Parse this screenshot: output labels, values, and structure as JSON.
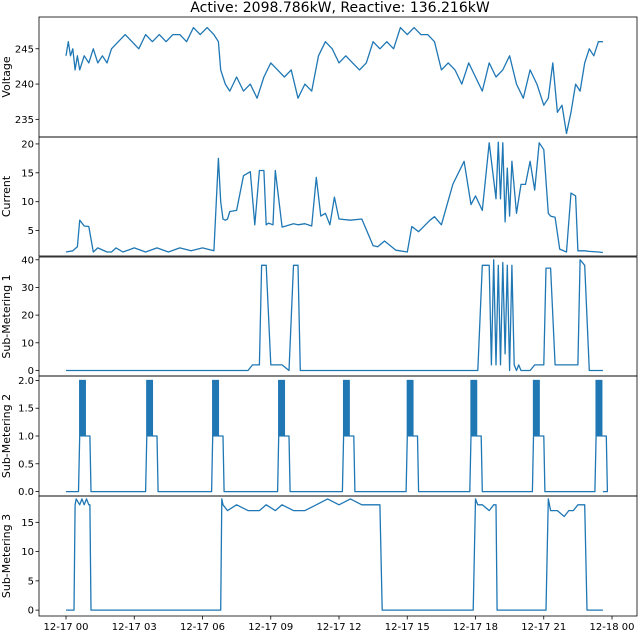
{
  "title": "Active: 2098.786kW, Reactive: 136.216kW",
  "colors": {
    "line": "#1f77b4",
    "axis": "#000000",
    "background": "#ffffff"
  },
  "chart_data": [
    {
      "type": "line",
      "ylabel": "Voltage",
      "ylim": [
        232.5,
        249.5
      ],
      "yticks": [
        235,
        240,
        245
      ],
      "ytick_labels": [
        "235",
        "240",
        "245"
      ],
      "x_hours": [
        0,
        0.1,
        0.2,
        0.3,
        0.4,
        0.5,
        0.6,
        0.8,
        1.0,
        1.2,
        1.4,
        1.6,
        1.8,
        2.0,
        2.3,
        2.6,
        2.9,
        3.2,
        3.5,
        3.8,
        4.1,
        4.4,
        4.7,
        5.0,
        5.3,
        5.6,
        5.9,
        6.2,
        6.5,
        6.7,
        6.8,
        6.9,
        7.0,
        7.2,
        7.5,
        7.8,
        8.1,
        8.4,
        8.7,
        9.0,
        9.3,
        9.6,
        9.9,
        10.2,
        10.5,
        10.8,
        11.1,
        11.4,
        11.7,
        12.0,
        12.3,
        12.6,
        12.9,
        13.2,
        13.5,
        13.8,
        14.1,
        14.4,
        14.7,
        15.0,
        15.3,
        15.6,
        15.9,
        16.2,
        16.5,
        16.8,
        17.1,
        17.4,
        17.7,
        18.0,
        18.3,
        18.6,
        18.9,
        19.2,
        19.5,
        19.8,
        20.1,
        20.4,
        20.7,
        21.0,
        21.2,
        21.4,
        21.6,
        21.8,
        22.0,
        22.2,
        22.4,
        22.6,
        22.8,
        23.0,
        23.2,
        23.4,
        23.6
      ],
      "values": [
        244,
        246,
        244,
        245,
        242,
        244,
        242,
        244,
        243,
        245,
        243,
        244,
        243,
        245,
        246,
        247,
        246,
        245,
        247,
        246,
        247,
        246,
        247,
        247,
        246,
        248,
        247,
        248,
        247,
        246,
        242,
        241,
        240,
        239,
        241,
        239,
        240,
        238,
        241,
        243,
        242,
        241,
        242,
        238,
        240,
        239,
        244,
        246,
        245,
        243,
        244,
        243,
        242,
        243,
        246,
        245,
        246,
        245,
        248,
        247,
        248,
        247,
        247,
        246,
        242,
        243,
        242,
        240,
        243,
        241,
        239,
        243,
        241,
        242,
        244,
        240,
        238,
        242,
        240,
        237,
        238,
        243,
        236,
        237,
        233,
        236,
        240,
        239,
        243,
        245,
        244,
        246,
        246
      ]
    },
    {
      "type": "line",
      "ylabel": "Current",
      "ylim": [
        0.6,
        21.2
      ],
      "yticks": [
        5,
        10,
        15,
        20
      ],
      "ytick_labels": [
        "5",
        "10",
        "15",
        "20"
      ],
      "x_hours": [
        0,
        0.3,
        0.5,
        0.6,
        0.8,
        1.0,
        1.2,
        1.4,
        1.8,
        2.0,
        2.2,
        2.5,
        3.0,
        3.5,
        4.0,
        4.5,
        5.0,
        5.5,
        6.0,
        6.5,
        6.7,
        6.8,
        6.9,
        7.0,
        7.1,
        7.2,
        7.5,
        7.8,
        8.1,
        8.3,
        8.5,
        8.7,
        8.8,
        8.9,
        9.1,
        9.2,
        9.5,
        10.0,
        10.2,
        10.5,
        10.8,
        11.0,
        11.2,
        11.4,
        11.6,
        11.8,
        12.0,
        12.5,
        13.0,
        13.5,
        13.7,
        14.0,
        14.5,
        15.0,
        15.2,
        15.5,
        16.0,
        16.2,
        16.5,
        17.0,
        17.5,
        17.8,
        18.0,
        18.3,
        18.6,
        18.9,
        19.0,
        19.1,
        19.2,
        19.3,
        19.4,
        19.5,
        19.6,
        19.8,
        20.0,
        20.2,
        20.4,
        20.6,
        20.8,
        21.0,
        21.2,
        21.3,
        21.5,
        21.7,
        22.0,
        22.2,
        22.4,
        22.5,
        22.7,
        22.8,
        23.0,
        23.4,
        23.6
      ],
      "values": [
        1.3,
        1.5,
        2.2,
        6.8,
        5.8,
        5.7,
        1.3,
        2.0,
        1.3,
        1.3,
        2.0,
        1.3,
        2.0,
        1.3,
        2.0,
        1.3,
        2.0,
        1.5,
        2.0,
        1.5,
        17.5,
        10,
        7,
        6.8,
        7.0,
        8.3,
        8.5,
        14.5,
        15.2,
        6.0,
        15.4,
        15.4,
        6.0,
        6.3,
        6.0,
        15.4,
        5.6,
        6.2,
        6.0,
        6.2,
        5.8,
        14.2,
        7.5,
        8.0,
        6.0,
        10.8,
        7.0,
        6.8,
        7.0,
        2.4,
        2.2,
        3.2,
        1.6,
        1.3,
        5.7,
        4.8,
        6.8,
        7.4,
        6.0,
        13.0,
        17.0,
        9.5,
        11.0,
        8.5,
        20.2,
        10.5,
        20.3,
        10.5,
        20.2,
        6.5,
        15.8,
        7.5,
        17.0,
        8.0,
        13.0,
        13.0,
        17.0,
        12.0,
        20.2,
        19.0,
        8.0,
        7.5,
        7.3,
        1.8,
        1.3,
        11.5,
        11.0,
        1.5,
        1.5,
        1.5,
        1.4,
        1.3,
        1.2
      ]
    },
    {
      "type": "line",
      "ylabel": "Sub-Metering 1",
      "ylim": [
        -2,
        41
      ],
      "yticks": [
        0,
        10,
        20,
        30,
        40
      ],
      "ytick_labels": [
        "0",
        "10",
        "20",
        "30",
        "40"
      ],
      "x_hours": [
        0,
        8.0,
        8.2,
        8.5,
        8.6,
        8.8,
        9.0,
        9.1,
        9.5,
        9.8,
        10.0,
        10.2,
        10.3,
        10.6,
        10.8,
        10.9,
        18.1,
        18.3,
        18.6,
        18.7,
        18.8,
        18.9,
        19.0,
        19.1,
        19.2,
        19.3,
        19.4,
        19.5,
        19.6,
        19.7,
        19.8,
        19.9,
        20.0,
        20.1,
        20.2,
        20.4,
        20.6,
        21.0,
        21.1,
        21.3,
        21.5,
        22.5,
        22.6,
        22.8,
        23.0,
        23.6
      ],
      "values": [
        0,
        0,
        2,
        2,
        38,
        38,
        2,
        2,
        2,
        0,
        38,
        38,
        0,
        0,
        0,
        0,
        0,
        38,
        38,
        2,
        40,
        2,
        38,
        2,
        39,
        6,
        38,
        0,
        38,
        2,
        0,
        2,
        0,
        0,
        0,
        0,
        2,
        2,
        37,
        37,
        2,
        2,
        40,
        38,
        0,
        0
      ]
    },
    {
      "type": "line",
      "ylabel": "Sub-Metering 2",
      "ylim": [
        -0.08,
        2.08
      ],
      "yticks": [
        0.0,
        0.5,
        1.0,
        1.5,
        2.0
      ],
      "ytick_labels": [
        "0.0",
        "0.5",
        "1.0",
        "1.5",
        "2.0"
      ],
      "cycle_start_hours": [
        0.55,
        3.5,
        6.4,
        9.3,
        12.15,
        14.95,
        17.75,
        20.5,
        23.25
      ],
      "cycle_pattern": {
        "rise_to": 1,
        "burst_max": 2,
        "burst_width_h": 0.25,
        "high_width_h": 0.4
      },
      "x_hours": [
        0,
        0.55
      ],
      "values": [
        0,
        0
      ]
    },
    {
      "type": "line",
      "ylabel": "Sub-Metering 3",
      "xlabel": "",
      "ylim": [
        -1,
        19.5
      ],
      "yticks": [
        0,
        5,
        10,
        15
      ],
      "ytick_labels": [
        "0",
        "5",
        "10",
        "15"
      ],
      "x_hours": [
        0,
        0.35,
        0.4,
        0.45,
        0.6,
        0.7,
        0.8,
        0.9,
        1.0,
        1.05,
        1.1,
        6.8,
        6.85,
        6.9,
        7.1,
        7.5,
        8.0,
        8.5,
        8.8,
        9.2,
        9.5,
        10.0,
        10.5,
        11.0,
        11.5,
        12.0,
        12.5,
        13.0,
        13.5,
        13.8,
        13.9,
        17.9,
        18.0,
        18.1,
        18.3,
        18.6,
        18.8,
        18.9,
        18.95,
        21.1,
        21.2,
        21.3,
        21.6,
        21.9,
        22.1,
        22.3,
        22.5,
        22.8,
        22.9,
        23.6
      ],
      "values": [
        0,
        0,
        18,
        19,
        18,
        19,
        18,
        19,
        18,
        18,
        0,
        0,
        19,
        18,
        17,
        18,
        17,
        17,
        18,
        17,
        18,
        17,
        17,
        18,
        19,
        18,
        19,
        18,
        18,
        18,
        0,
        0,
        19,
        18,
        18,
        17,
        18,
        18,
        0,
        0,
        19,
        17,
        17,
        16,
        17,
        17,
        18,
        18,
        0,
        0
      ]
    }
  ],
  "x_axis": {
    "tick_hours": [
      0,
      3,
      6,
      9,
      12,
      15,
      18,
      21,
      24
    ],
    "tick_labels": [
      "12-17 00",
      "12-17 03",
      "12-17 06",
      "12-17 09",
      "12-17 12",
      "12-17 15",
      "12-17 18",
      "12-17 21",
      "12-18 00"
    ]
  }
}
